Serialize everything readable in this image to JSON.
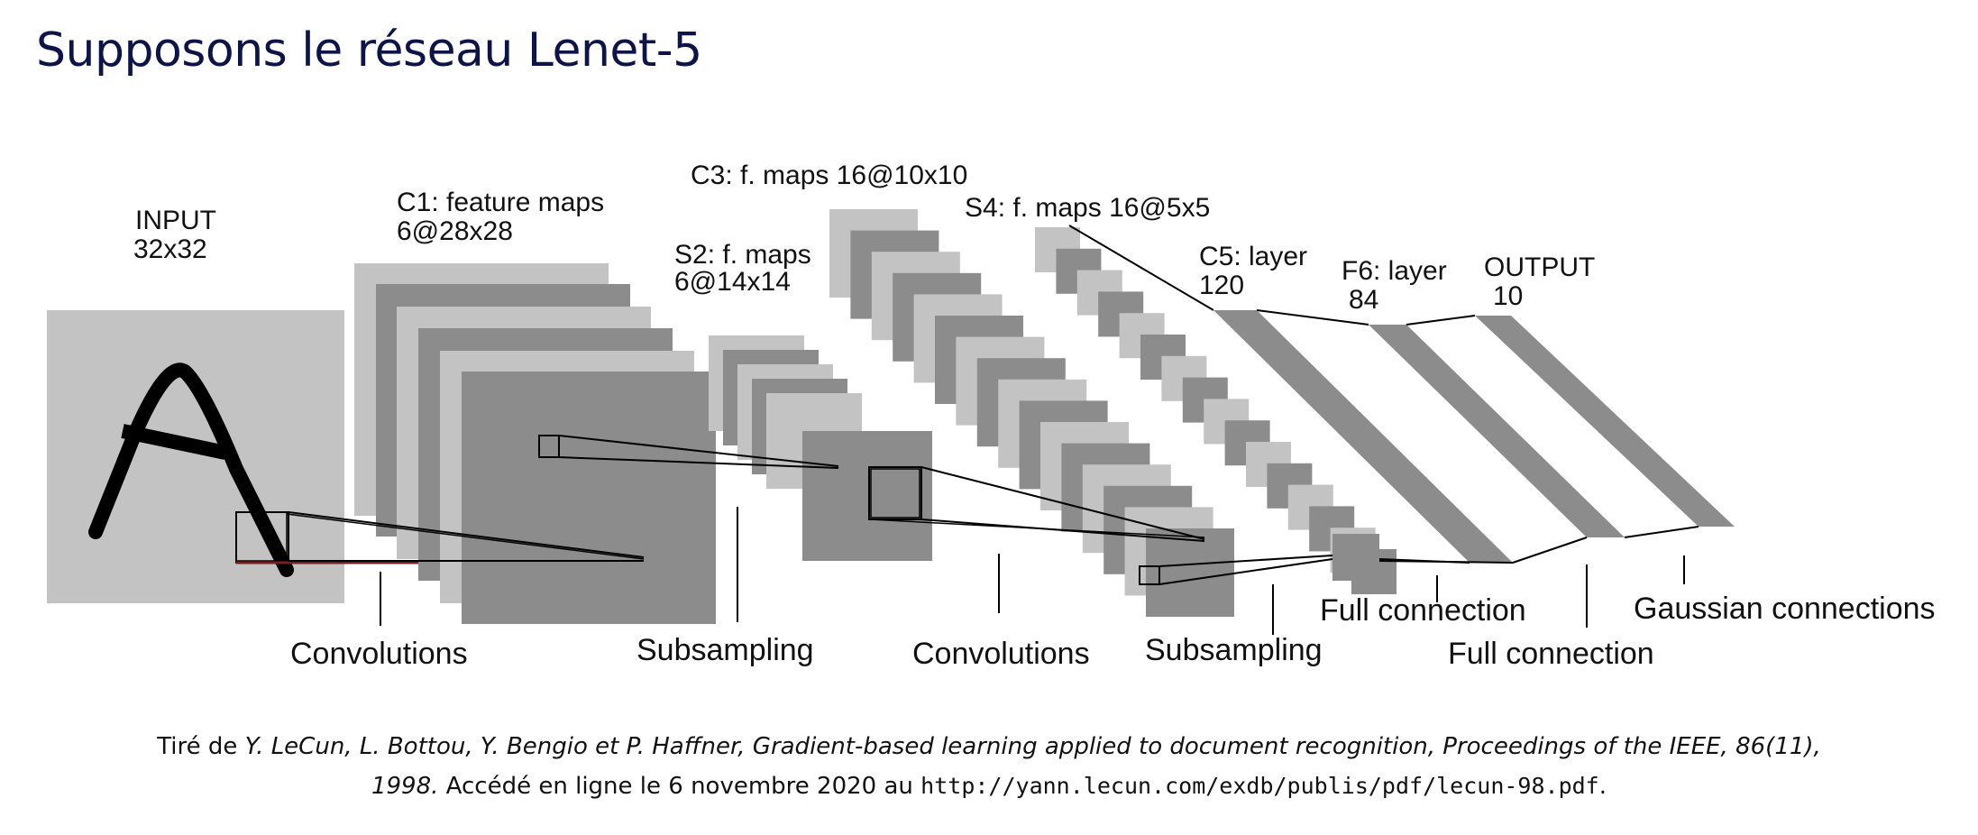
{
  "title": "Supposons le réseau Lenet-5",
  "colors": {
    "title": "#0d1447",
    "map_light": "#c3c3c3",
    "map_dark": "#8c8c8c",
    "map_mid": "#a8a8a8",
    "glyph": "#000000",
    "highlight_line": "#7a1f1f"
  },
  "layers": {
    "input": {
      "name": "INPUT",
      "size": "32x32"
    },
    "c1": {
      "name": "C1: feature maps",
      "size": "6@28x28"
    },
    "s2": {
      "name": "S2: f. maps",
      "size": "6@14x14"
    },
    "c3": {
      "name": "C3: f. maps 16@10x10"
    },
    "s4": {
      "name": "S4: f. maps 16@5x5"
    },
    "c5": {
      "name": "C5: layer",
      "size": "120"
    },
    "f6": {
      "name": "F6: layer",
      "size": "84"
    },
    "output": {
      "name": "OUTPUT",
      "size": "10"
    }
  },
  "operations": {
    "conv1": "Convolutions",
    "sub1": "Subsampling",
    "conv2": "Convolutions",
    "sub2": "Subsampling",
    "full1": "Full connection",
    "full2": "Full connection",
    "gauss": "Gaussian connections"
  },
  "caption": {
    "prefix": "Tiré de ",
    "ref": "Y. LeCun, L. Bottou, Y. Bengio et P. Haffner, Gradient-based learning applied to document recognition, Proceedings of the IEEE, 86(11),",
    "year": "1998.",
    "access": " Accédé en ligne le 6 novembre 2020 au ",
    "url": "http://yann.lecun.com/exdb/publis/pdf/lecun-98.pdf",
    "end": "."
  }
}
